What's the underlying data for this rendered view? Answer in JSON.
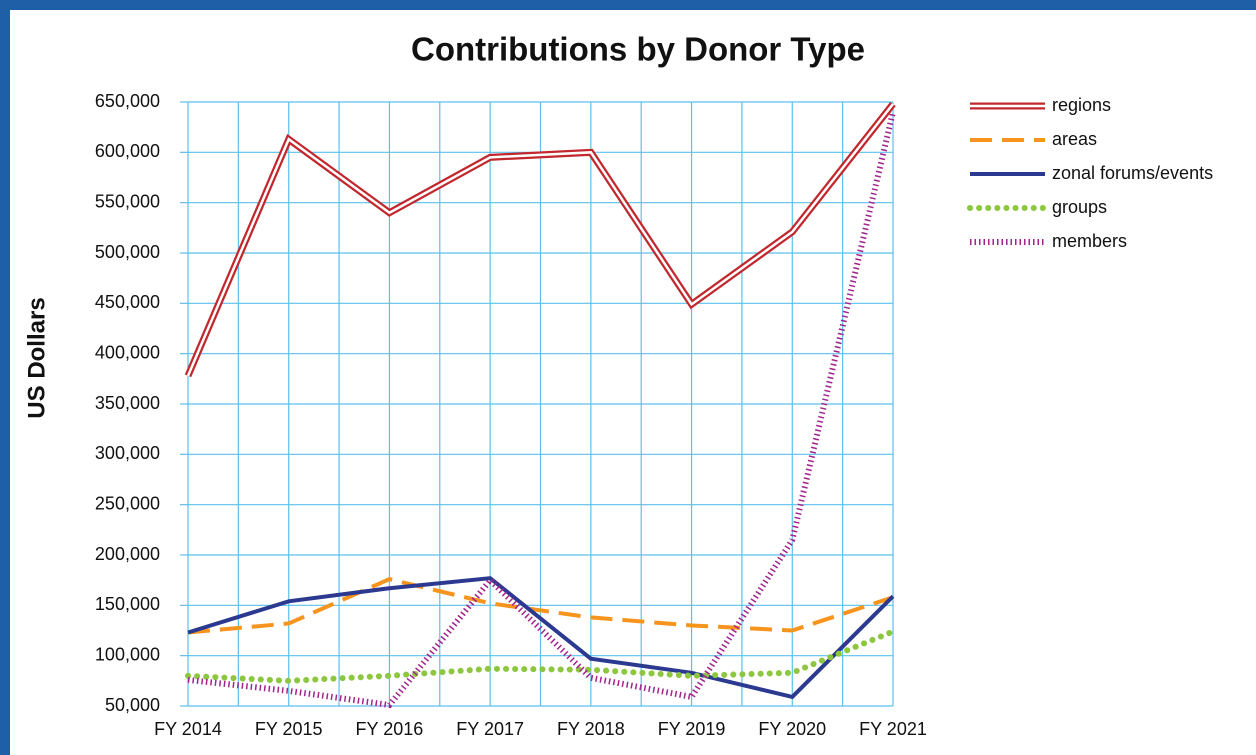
{
  "chart_data": {
    "type": "line",
    "title": "Contributions by Donor Type",
    "y_label": "US Dollars",
    "categories": [
      "FY 2014",
      "FY 2015",
      "FY 2016",
      "FY 2017",
      "FY 2018",
      "FY 2019",
      "FY 2020",
      "FY 2021"
    ],
    "series": [
      {
        "name": "regions",
        "color": "#c1272d",
        "line_style": "double",
        "values": [
          378000,
          613000,
          540000,
          595000,
          600000,
          449000,
          521000,
          648000
        ]
      },
      {
        "name": "areas",
        "color": "#f7941d",
        "line_style": "dashed",
        "values": [
          123000,
          132000,
          176000,
          152000,
          138000,
          130000,
          125000,
          158000
        ]
      },
      {
        "name": "zonal forums/events",
        "color": "#2b3990",
        "line_style": "solid",
        "values": [
          123000,
          154000,
          167000,
          177000,
          97000,
          83000,
          59000,
          159000
        ]
      },
      {
        "name": "groups",
        "color": "#8dc63f",
        "line_style": "dotted",
        "values": [
          80000,
          75000,
          80000,
          87000,
          86000,
          80000,
          83000,
          124000
        ]
      },
      {
        "name": "members",
        "color": "#a3238e",
        "line_style": "starred",
        "values": [
          76000,
          65000,
          51000,
          175000,
          78000,
          59000,
          215000,
          640000
        ]
      }
    ],
    "ylim": [
      50000,
      650000
    ],
    "yticks": [
      {
        "value": 50000,
        "label": "50,000"
      },
      {
        "value": 100000,
        "label": "100,000"
      },
      {
        "value": 150000,
        "label": "150,000"
      },
      {
        "value": 200000,
        "label": "200,000"
      },
      {
        "value": 250000,
        "label": "250,000"
      },
      {
        "value": 300000,
        "label": "300,000"
      },
      {
        "value": 350000,
        "label": "350,000"
      },
      {
        "value": 400000,
        "label": "400,000"
      },
      {
        "value": 450000,
        "label": "450,000"
      },
      {
        "value": 500000,
        "label": "500,000"
      },
      {
        "value": 550000,
        "label": "550,000"
      },
      {
        "value": 600000,
        "label": "600,000"
      },
      {
        "value": 650000,
        "label": "650,000"
      }
    ],
    "grid": true,
    "legend": "top-right"
  }
}
